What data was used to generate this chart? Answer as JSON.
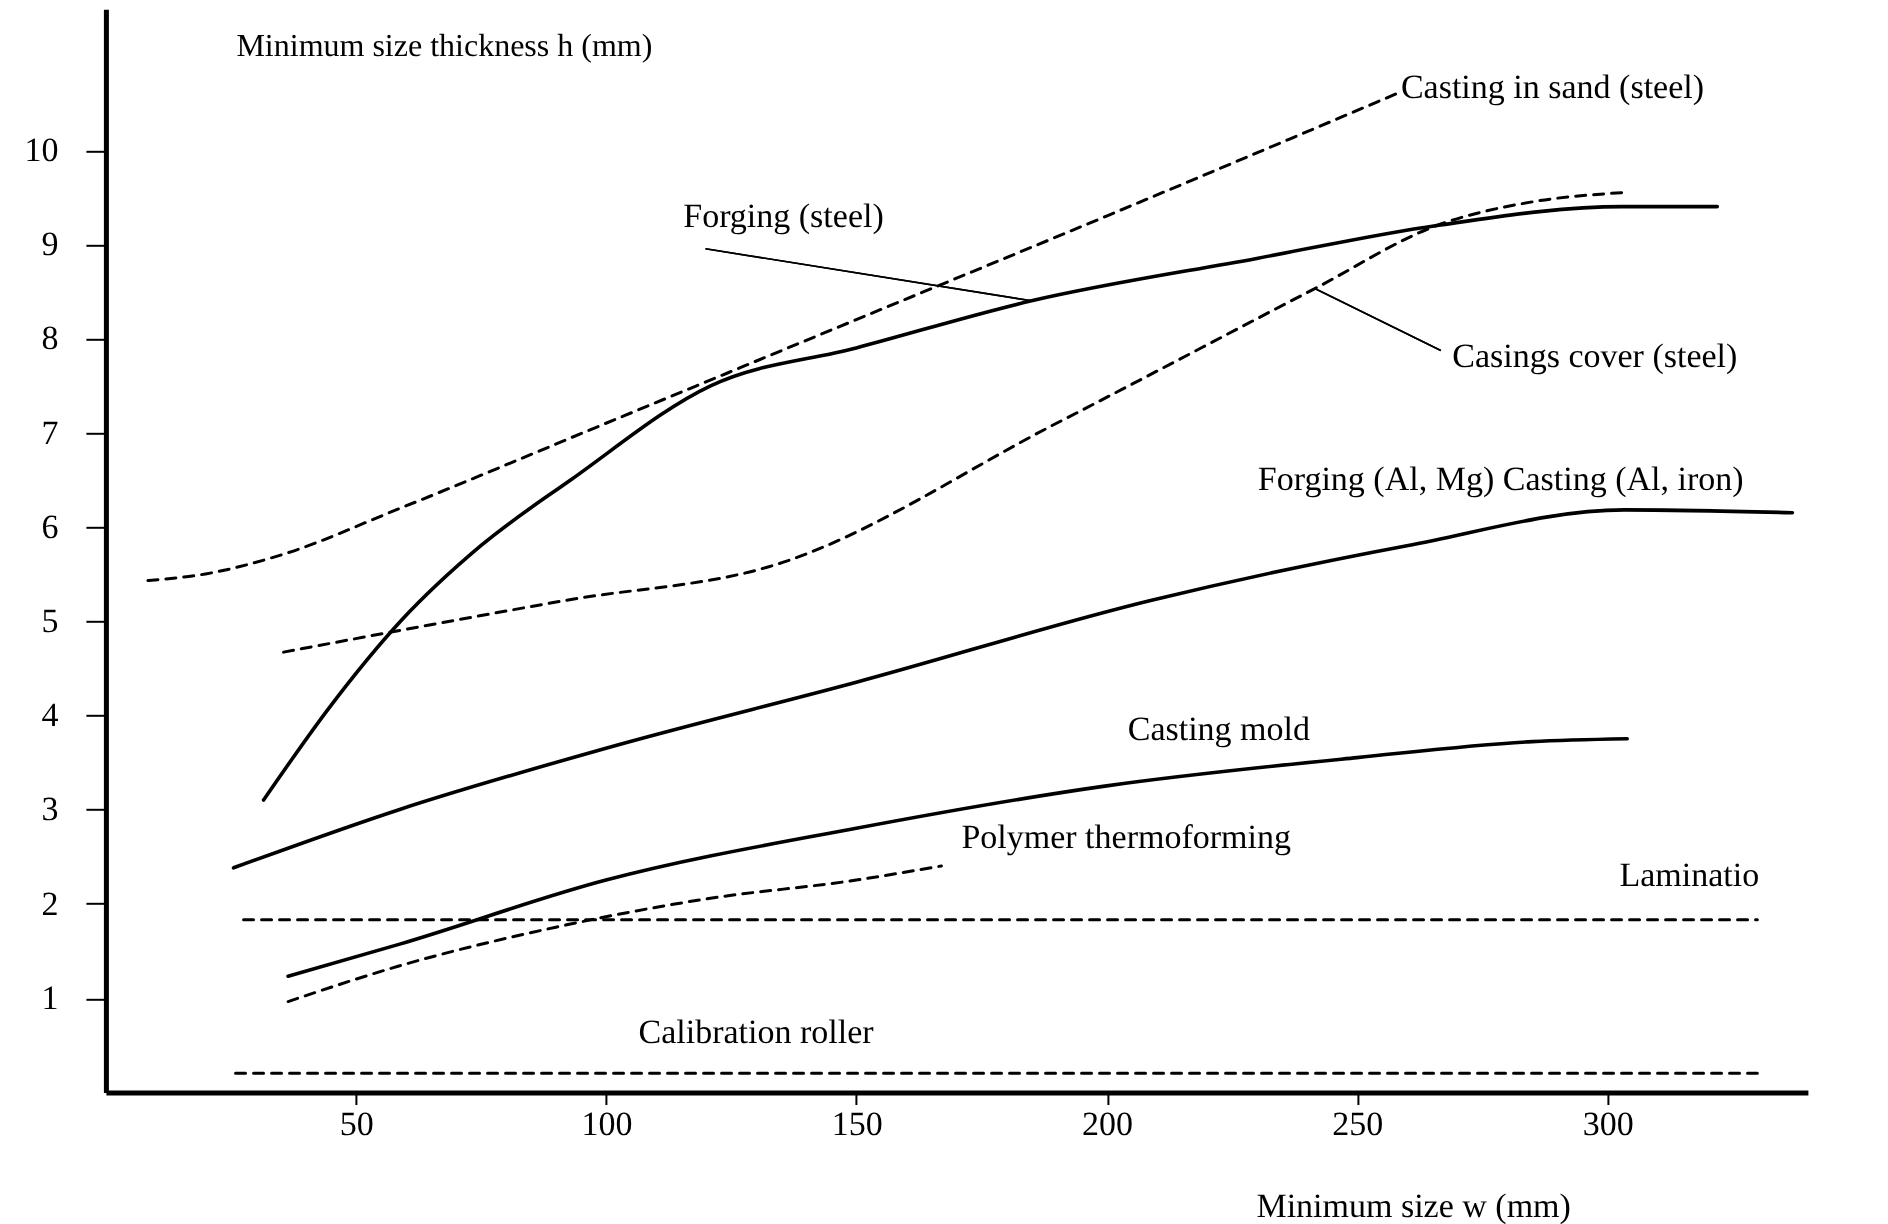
{
  "chart_data": {
    "type": "line",
    "xlabel": "Minimum size w (mm)",
    "ylabel": "Minimum size thickness h (mm)",
    "xlim": [
      0,
      340
    ],
    "ylim": [
      0,
      11.5
    ],
    "xticks": [
      50,
      100,
      150,
      200,
      250,
      300
    ],
    "yticks": [
      1,
      2,
      3,
      4,
      5,
      6,
      7,
      8,
      9,
      10
    ],
    "grid": false,
    "marker": "none",
    "series": [
      {
        "color": "#000000",
        "line_style": "dashed",
        "x": [
          8.5,
          20,
          35,
          59,
          100,
          150,
          200,
          258
        ],
        "values": [
          5.43,
          5.5,
          5.7,
          6.2,
          7.1,
          8.2,
          9.3,
          10.6
        ]
      },
      {
        "color": "#000000",
        "line_style": "solid",
        "x": [
          31.6,
          45,
          59,
          75,
          93,
          121,
          150,
          185,
          230,
          266,
          303,
          322
        ],
        "values": [
          3.1,
          4.1,
          5.0,
          5.8,
          6.5,
          7.5,
          7.9,
          8.4,
          8.85,
          9.2,
          9.4,
          9.4
        ]
      },
      {
        "color": "#000000",
        "line_style": "dashed",
        "x": [
          35.6,
          58.8,
          92,
          134,
          190,
          241.6,
          266,
          285,
          303.5
        ],
        "values": [
          4.67,
          4.9,
          5.22,
          5.6,
          7.1,
          8.53,
          9.2,
          9.45,
          9.55
        ]
      },
      {
        "color": "#000000",
        "line_style": "solid",
        "x": [
          25.6,
          58.8,
          100,
          150,
          209,
          260,
          303.5,
          337
        ],
        "values": [
          2.38,
          3.0,
          3.65,
          4.35,
          5.22,
          5.8,
          6.18,
          6.15
        ]
      },
      {
        "color": "#000000",
        "line_style": "solid",
        "x": [
          36.5,
          58.8,
          100,
          150,
          200,
          250,
          285,
          304
        ],
        "values": [
          1.23,
          1.57,
          2.25,
          2.8,
          3.25,
          3.55,
          3.72,
          3.75
        ]
      },
      {
        "color": "#000000",
        "line_style": "dashed",
        "x": [
          36.5,
          58.8,
          90,
          120,
          150,
          167
        ],
        "values": [
          0.96,
          1.34,
          1.75,
          2.05,
          2.25,
          2.4
        ]
      },
      {
        "color": "#000000",
        "line_style": "dashed",
        "x": [
          27.6,
          330
        ],
        "values": [
          1.83,
          1.83
        ]
      },
      {
        "color": "#000000",
        "line_style": "dashed",
        "x": [
          26,
          330
        ],
        "values": [
          0.2,
          0.2
        ]
      }
    ],
    "annotations": [
      {
        "text": "Casting in sand (steel)",
        "x": 258,
        "y": 10.6
      },
      {
        "text": "Forging (steel)",
        "x": 185,
        "y": 8.4
      },
      {
        "text": "Casings cover (steel)",
        "x": 241.6,
        "y": 8.53
      },
      {
        "text": "Forging (Al, Mg) Casting (Al, iron)",
        "x": 303.5,
        "y": 6.18
      },
      {
        "text": "Casting mold",
        "x": 250,
        "y": 3.55
      },
      {
        "text": "Polymer thermoforming",
        "x": 167,
        "y": 2.4
      },
      {
        "text": "Laminatio",
        "x": 330,
        "y": 1.83
      },
      {
        "text": "Calibration roller",
        "x": 120,
        "y": 0.2
      }
    ]
  }
}
